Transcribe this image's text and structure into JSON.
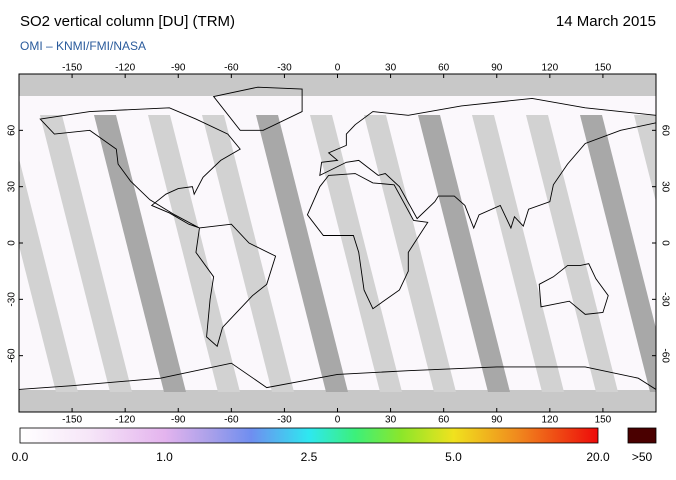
{
  "header": {
    "title": "SO2 vertical column [DU] (TRM)",
    "subtitle": "OMI  –  KNMI/FMI/NASA",
    "date": "14 March 2015"
  },
  "map": {
    "lon_ticks": [
      -150,
      -120,
      -90,
      -60,
      -30,
      0,
      30,
      60,
      90,
      120,
      150
    ],
    "lat_ticks": [
      60,
      30,
      0,
      -30,
      -60
    ]
  },
  "colorbar": {
    "labels": [
      "0.0",
      "1.0",
      "2.5",
      "5.0",
      "20.0"
    ],
    "over_label": ">50"
  }
}
